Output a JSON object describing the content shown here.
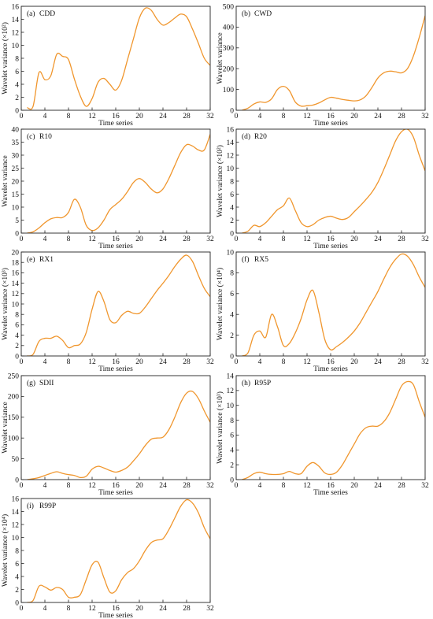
{
  "chart_data": [
    {
      "type": "line",
      "panel_label": "(a)",
      "title": "CDD",
      "xlabel": "Time series",
      "ylabel": "Wavelet variance (×10²)",
      "xlim": [
        0,
        32
      ],
      "ylim": [
        0,
        16
      ],
      "x_ticks": [
        0,
        4,
        8,
        12,
        16,
        20,
        24,
        28,
        32
      ],
      "y_ticks": [
        0,
        2,
        4,
        6,
        8,
        10,
        12,
        14,
        16
      ],
      "x": [
        1,
        2,
        3,
        4,
        5,
        6,
        7,
        8,
        9,
        10,
        11,
        12,
        13,
        14,
        15,
        16,
        17,
        18,
        19,
        20,
        21,
        22,
        23,
        24,
        25,
        26,
        27,
        28,
        29,
        30,
        31,
        32
      ],
      "values": [
        0.4,
        0.6,
        5.8,
        4.7,
        5.3,
        8.6,
        8.3,
        7.8,
        4.8,
        2.2,
        0.6,
        1.8,
        4.3,
        4.9,
        4.0,
        3.1,
        4.6,
        7.8,
        11.0,
        14.2,
        15.7,
        15.4,
        14.0,
        13.1,
        13.5,
        14.2,
        14.8,
        14.4,
        12.5,
        10.3,
        8.0,
        6.9
      ],
      "series_color": "#f0962d"
    },
    {
      "type": "line",
      "panel_label": "(b)",
      "title": "CWD",
      "xlabel": "Time series",
      "ylabel": "Wavelet variance",
      "xlim": [
        0,
        32
      ],
      "ylim": [
        0,
        500
      ],
      "x_ticks": [
        0,
        4,
        8,
        12,
        16,
        20,
        24,
        28,
        32
      ],
      "y_ticks": [
        0,
        100,
        200,
        300,
        400,
        500
      ],
      "x": [
        1,
        2,
        3,
        4,
        5,
        6,
        7,
        8,
        9,
        10,
        11,
        12,
        13,
        14,
        15,
        16,
        17,
        18,
        19,
        20,
        21,
        22,
        23,
        24,
        25,
        26,
        27,
        28,
        29,
        30,
        31,
        32
      ],
      "values": [
        0,
        10,
        30,
        40,
        38,
        55,
        100,
        115,
        95,
        40,
        20,
        22,
        25,
        35,
        50,
        62,
        58,
        52,
        48,
        45,
        50,
        70,
        110,
        155,
        180,
        188,
        185,
        180,
        200,
        260,
        350,
        455
      ],
      "series_color": "#f0962d"
    },
    {
      "type": "line",
      "panel_label": "(c)",
      "title": "R10",
      "xlabel": "Time series",
      "ylabel": "Wavelet variance",
      "xlim": [
        0,
        32
      ],
      "ylim": [
        0,
        40
      ],
      "x_ticks": [
        0,
        4,
        8,
        12,
        16,
        20,
        24,
        28,
        32
      ],
      "y_ticks": [
        0,
        5,
        10,
        15,
        20,
        25,
        30,
        35,
        40
      ],
      "x": [
        1,
        2,
        3,
        4,
        5,
        6,
        7,
        8,
        9,
        10,
        11,
        12,
        13,
        14,
        15,
        16,
        17,
        18,
        19,
        20,
        21,
        22,
        23,
        24,
        25,
        26,
        27,
        28,
        29,
        30,
        31,
        32
      ],
      "values": [
        0,
        0.5,
        2,
        4,
        5.5,
        6,
        6,
        8,
        13,
        10,
        3,
        1,
        2,
        5,
        9,
        11,
        13,
        16,
        19.5,
        21,
        19.5,
        17,
        15.5,
        17,
        21,
        26,
        31,
        34,
        33.5,
        32,
        32,
        38
      ],
      "series_color": "#f0962d"
    },
    {
      "type": "line",
      "panel_label": "(d)",
      "title": "R20",
      "xlabel": "Time series",
      "ylabel": "Wavelet variance (×10²)",
      "xlim": [
        0,
        32
      ],
      "ylim": [
        0,
        16
      ],
      "x_ticks": [
        0,
        4,
        8,
        12,
        16,
        20,
        24,
        28,
        32
      ],
      "y_ticks": [
        0,
        2,
        4,
        6,
        8,
        10,
        12,
        14,
        16
      ],
      "x": [
        1,
        2,
        3,
        4,
        5,
        6,
        7,
        8,
        9,
        10,
        11,
        12,
        13,
        14,
        15,
        16,
        17,
        18,
        19,
        20,
        21,
        22,
        23,
        24,
        25,
        26,
        27,
        28,
        29,
        30,
        31,
        32
      ],
      "values": [
        0,
        0.3,
        1.2,
        1.0,
        1.6,
        2.6,
        3.6,
        4.2,
        5.4,
        3.5,
        1.6,
        1.0,
        1.3,
        2.0,
        2.4,
        2.6,
        2.3,
        2.1,
        2.4,
        3.3,
        4.2,
        5.2,
        6.3,
        7.8,
        9.8,
        12.0,
        14.2,
        15.6,
        16.0,
        14.8,
        12.0,
        9.6
      ],
      "series_color": "#f0962d"
    },
    {
      "type": "line",
      "panel_label": "(e)",
      "title": "RX1",
      "xlabel": "Time series",
      "ylabel": "Wavelet variance (×10³)",
      "xlim": [
        0,
        32
      ],
      "ylim": [
        0,
        20
      ],
      "x_ticks": [
        0,
        4,
        8,
        12,
        16,
        20,
        24,
        28,
        32
      ],
      "y_ticks": [
        0,
        2,
        4,
        6,
        8,
        10,
        12,
        14,
        16,
        18,
        20
      ],
      "x": [
        1,
        2,
        3,
        4,
        5,
        6,
        7,
        8,
        9,
        10,
        11,
        12,
        13,
        14,
        15,
        16,
        17,
        18,
        19,
        20,
        21,
        22,
        23,
        24,
        25,
        26,
        27,
        28,
        29,
        30,
        31,
        32
      ],
      "values": [
        0,
        0.3,
        2.8,
        3.4,
        3.4,
        3.8,
        3.0,
        1.6,
        2.0,
        2.3,
        4.5,
        9.0,
        12.4,
        10.5,
        7.0,
        6.4,
        7.8,
        8.6,
        8.2,
        8.2,
        9.4,
        11.0,
        12.6,
        14.0,
        15.5,
        17.2,
        18.6,
        19.4,
        18.2,
        15.5,
        13.0,
        11.4
      ],
      "series_color": "#f0962d"
    },
    {
      "type": "line",
      "panel_label": "(f)",
      "title": "RX5",
      "xlabel": "Time series",
      "ylabel": "Wavelet variance (×10⁴)",
      "xlim": [
        0,
        32
      ],
      "ylim": [
        0,
        10
      ],
      "x_ticks": [
        0,
        4,
        8,
        12,
        16,
        20,
        24,
        28,
        32
      ],
      "y_ticks": [
        0,
        2,
        4,
        6,
        8,
        10
      ],
      "x": [
        1,
        2,
        3,
        4,
        5,
        6,
        7,
        8,
        9,
        10,
        11,
        12,
        13,
        14,
        15,
        16,
        17,
        18,
        19,
        20,
        21,
        22,
        23,
        24,
        25,
        26,
        27,
        28,
        29,
        30,
        31,
        32
      ],
      "values": [
        0,
        0.3,
        2.0,
        2.4,
        1.8,
        4.0,
        2.8,
        1.0,
        1.2,
        2.2,
        3.6,
        5.4,
        6.3,
        4.2,
        1.6,
        0.6,
        0.9,
        1.3,
        1.8,
        2.4,
        3.2,
        4.2,
        5.2,
        6.2,
        7.4,
        8.5,
        9.3,
        9.8,
        9.6,
        8.8,
        7.6,
        6.6
      ],
      "series_color": "#f0962d"
    },
    {
      "type": "line",
      "panel_label": "(g)",
      "title": "SDII",
      "xlabel": "Time series",
      "ylabel": "Wavelet variance",
      "xlim": [
        0,
        32
      ],
      "ylim": [
        0,
        250
      ],
      "x_ticks": [
        0,
        4,
        8,
        12,
        16,
        20,
        24,
        28,
        32
      ],
      "y_ticks": [
        0,
        50,
        100,
        150,
        200,
        250
      ],
      "x": [
        1,
        2,
        3,
        4,
        5,
        6,
        7,
        8,
        9,
        10,
        11,
        12,
        13,
        14,
        15,
        16,
        17,
        18,
        19,
        20,
        21,
        22,
        23,
        24,
        25,
        26,
        27,
        28,
        29,
        30,
        31,
        32
      ],
      "values": [
        0,
        2,
        5,
        10,
        15,
        19,
        15,
        12,
        10,
        5,
        8,
        25,
        32,
        28,
        22,
        18,
        22,
        30,
        45,
        62,
        82,
        97,
        100,
        102,
        120,
        150,
        185,
        208,
        212,
        195,
        165,
        138
      ],
      "series_color": "#f0962d"
    },
    {
      "type": "line",
      "panel_label": "(h)",
      "title": "R95P",
      "xlabel": "Time series",
      "ylabel": "Wavelet variance (×10³)",
      "xlim": [
        0,
        32
      ],
      "ylim": [
        0,
        14
      ],
      "x_ticks": [
        0,
        4,
        8,
        12,
        16,
        20,
        24,
        28,
        32
      ],
      "y_ticks": [
        0,
        2,
        4,
        6,
        8,
        10,
        12,
        14
      ],
      "x": [
        1,
        2,
        3,
        4,
        5,
        6,
        7,
        8,
        9,
        10,
        11,
        12,
        13,
        14,
        15,
        16,
        17,
        18,
        19,
        20,
        21,
        22,
        23,
        24,
        25,
        26,
        27,
        28,
        29,
        30,
        31,
        32
      ],
      "values": [
        0,
        0.3,
        0.8,
        1.0,
        0.8,
        0.7,
        0.7,
        0.8,
        1.1,
        0.8,
        0.8,
        1.8,
        2.3,
        1.8,
        0.9,
        0.7,
        1.0,
        2.0,
        3.4,
        4.8,
        6.2,
        7.0,
        7.2,
        7.2,
        7.8,
        9.0,
        10.8,
        12.6,
        13.2,
        12.8,
        10.5,
        8.4
      ],
      "series_color": "#f0962d"
    },
    {
      "type": "line",
      "panel_label": "(i)",
      "title": "R99P",
      "xlabel": "Time series",
      "ylabel": "Wavelet variance (×10⁴)",
      "xlim": [
        0,
        32
      ],
      "ylim": [
        0,
        16
      ],
      "x_ticks": [
        0,
        4,
        8,
        12,
        16,
        20,
        24,
        28,
        32
      ],
      "y_ticks": [
        0,
        2,
        4,
        6,
        8,
        10,
        12,
        14,
        16
      ],
      "x": [
        1,
        2,
        3,
        4,
        5,
        6,
        7,
        8,
        9,
        10,
        11,
        12,
        13,
        14,
        15,
        16,
        17,
        18,
        19,
        20,
        21,
        22,
        23,
        24,
        25,
        26,
        27,
        28,
        29,
        30,
        31,
        32
      ],
      "values": [
        0,
        0.3,
        2.5,
        2.4,
        1.9,
        2.3,
        2.0,
        0.8,
        0.8,
        1.2,
        3.5,
        5.8,
        6.2,
        3.8,
        1.6,
        1.8,
        3.5,
        4.6,
        5.2,
        6.4,
        8.0,
        9.2,
        9.6,
        9.8,
        11.2,
        13.0,
        14.8,
        15.8,
        15.3,
        13.8,
        11.5,
        9.8
      ],
      "series_color": "#f0962d"
    }
  ]
}
